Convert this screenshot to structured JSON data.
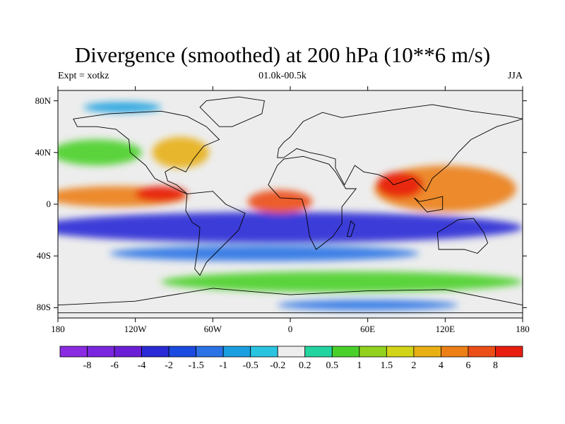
{
  "title": "Divergence (smoothed) at 200 hPa (10**6 m/s)",
  "subtitle": {
    "left": "Expt = xotkz",
    "center": "01.0k-00.5k",
    "right": "JJA"
  },
  "lat_ticks": [
    {
      "lat": 80,
      "label": "80N"
    },
    {
      "lat": 40,
      "label": "40N"
    },
    {
      "lat": 0,
      "label": "0"
    },
    {
      "lat": -40,
      "label": "40S"
    },
    {
      "lat": -80,
      "label": "80S"
    }
  ],
  "lon_ticks": [
    {
      "lon": -180,
      "label": "180"
    },
    {
      "lon": -120,
      "label": "120W"
    },
    {
      "lon": -60,
      "label": "60W"
    },
    {
      "lon": 0,
      "label": "0"
    },
    {
      "lon": 60,
      "label": "60E"
    },
    {
      "lon": 120,
      "label": "120E"
    },
    {
      "lon": 180,
      "label": "180"
    }
  ],
  "colorbar": {
    "colors": [
      "#8a2be2",
      "#7a26de",
      "#6a1fd6",
      "#2a2ad6",
      "#1a4ae0",
      "#2a72e6",
      "#1aa0e0",
      "#2ac4e0",
      "#ededed",
      "#22d4a0",
      "#4ad02a",
      "#92d21e",
      "#d2d418",
      "#e8b014",
      "#ec8016",
      "#ec4e18",
      "#e81e10"
    ],
    "labels": [
      "-8",
      "-6",
      "-4",
      "-2",
      "-1.5",
      "-1",
      "-0.5",
      "-0.2",
      "0.2",
      "0.5",
      "1",
      "1.5",
      "2",
      "4",
      "6",
      "8"
    ]
  },
  "map": {
    "background_color": "#ededed",
    "field_blobs": [
      {
        "name": "tropical-convergence-band",
        "lon": -10,
        "lat": -18,
        "rx": 190,
        "ry": 12,
        "color": "#2a2ad6"
      },
      {
        "name": "pacific-divergence-belt",
        "lon": -135,
        "lat": 6,
        "rx": 55,
        "ry": 8,
        "color": "#ec8016"
      },
      {
        "name": "east-pacific-max",
        "lon": -100,
        "lat": 8,
        "rx": 20,
        "ry": 6,
        "color": "#e81e10"
      },
      {
        "name": "atlantic-max",
        "lon": -8,
        "lat": 2,
        "rx": 25,
        "ry": 9,
        "color": "#ec4e18"
      },
      {
        "name": "asian-monsoon-divergence",
        "lon": 120,
        "lat": 12,
        "rx": 55,
        "ry": 18,
        "color": "#ec8016"
      },
      {
        "name": "indian-ocean-divergence",
        "lon": 85,
        "lat": 15,
        "rx": 18,
        "ry": 10,
        "color": "#e81e10"
      },
      {
        "name": "north-pacific-convergence",
        "lon": -150,
        "lat": 40,
        "rx": 35,
        "ry": 10,
        "color": "#4ad02a"
      },
      {
        "name": "north-america-divergence",
        "lon": -85,
        "lat": 40,
        "rx": 22,
        "ry": 12,
        "color": "#e8b014"
      },
      {
        "name": "southern-ocean-convergence",
        "lon": 40,
        "lat": -60,
        "rx": 140,
        "ry": 8,
        "color": "#4ad02a"
      },
      {
        "name": "antarctic-edge-blue",
        "lon": 60,
        "lat": -78,
        "rx": 70,
        "ry": 4,
        "color": "#2a72e6"
      },
      {
        "name": "subtropical-south-blue",
        "lon": -20,
        "lat": -38,
        "rx": 120,
        "ry": 6,
        "color": "#2a72e6"
      },
      {
        "name": "arctic-blue",
        "lon": -130,
        "lat": 75,
        "rx": 30,
        "ry": 4,
        "color": "#1aa0e0"
      }
    ],
    "continents": [
      {
        "name": "north-america",
        "coords": [
          [
            -168,
            66
          ],
          [
            -140,
            70
          ],
          [
            -100,
            72
          ],
          [
            -80,
            68
          ],
          [
            -65,
            60
          ],
          [
            -55,
            50
          ],
          [
            -67,
            45
          ],
          [
            -75,
            35
          ],
          [
            -81,
            25
          ],
          [
            -90,
            29
          ],
          [
            -97,
            25
          ],
          [
            -95,
            18
          ],
          [
            -88,
            15
          ],
          [
            -80,
            8
          ],
          [
            -85,
            10
          ],
          [
            -105,
            20
          ],
          [
            -112,
            30
          ],
          [
            -124,
            40
          ],
          [
            -125,
            50
          ],
          [
            -135,
            58
          ],
          [
            -150,
            60
          ],
          [
            -165,
            60
          ]
        ]
      },
      {
        "name": "south-america",
        "coords": [
          [
            -80,
            8
          ],
          [
            -60,
            10
          ],
          [
            -50,
            0
          ],
          [
            -35,
            -7
          ],
          [
            -40,
            -20
          ],
          [
            -48,
            -28
          ],
          [
            -58,
            -38
          ],
          [
            -65,
            -45
          ],
          [
            -70,
            -55
          ],
          [
            -74,
            -50
          ],
          [
            -71,
            -30
          ],
          [
            -70,
            -18
          ],
          [
            -76,
            -14
          ],
          [
            -81,
            -5
          ]
        ]
      },
      {
        "name": "africa",
        "coords": [
          [
            -17,
            15
          ],
          [
            -10,
            30
          ],
          [
            -5,
            35
          ],
          [
            10,
            37
          ],
          [
            30,
            31
          ],
          [
            35,
            25
          ],
          [
            43,
            12
          ],
          [
            51,
            12
          ],
          [
            40,
            -2
          ],
          [
            40,
            -15
          ],
          [
            33,
            -25
          ],
          [
            20,
            -35
          ],
          [
            15,
            -25
          ],
          [
            12,
            -6
          ],
          [
            9,
            4
          ],
          [
            -8,
            5
          ]
        ]
      },
      {
        "name": "eurasia",
        "coords": [
          [
            -10,
            36
          ],
          [
            -9,
            43
          ],
          [
            -5,
            48
          ],
          [
            0,
            52
          ],
          [
            5,
            58
          ],
          [
            10,
            64
          ],
          [
            25,
            71
          ],
          [
            40,
            67
          ],
          [
            60,
            70
          ],
          [
            80,
            73
          ],
          [
            110,
            77
          ],
          [
            140,
            72
          ],
          [
            170,
            68
          ],
          [
            180,
            66
          ],
          [
            160,
            60
          ],
          [
            140,
            50
          ],
          [
            130,
            40
          ],
          [
            122,
            30
          ],
          [
            110,
            20
          ],
          [
            105,
            10
          ],
          [
            100,
            15
          ],
          [
            95,
            20
          ],
          [
            80,
            15
          ],
          [
            75,
            20
          ],
          [
            68,
            23
          ],
          [
            57,
            25
          ],
          [
            50,
            30
          ],
          [
            42,
            15
          ],
          [
            35,
            28
          ],
          [
            35,
            35
          ],
          [
            25,
            38
          ],
          [
            15,
            40
          ],
          [
            5,
            43
          ],
          [
            -5,
            36
          ]
        ]
      },
      {
        "name": "australia",
        "coords": [
          [
            114,
            -22
          ],
          [
            130,
            -12
          ],
          [
            142,
            -11
          ],
          [
            150,
            -22
          ],
          [
            153,
            -30
          ],
          [
            145,
            -38
          ],
          [
            135,
            -35
          ],
          [
            115,
            -35
          ]
        ]
      },
      {
        "name": "greenland",
        "coords": [
          [
            -55,
            60
          ],
          [
            -45,
            60
          ],
          [
            -22,
            70
          ],
          [
            -20,
            80
          ],
          [
            -40,
            83
          ],
          [
            -65,
            80
          ],
          [
            -70,
            75
          ]
        ]
      },
      {
        "name": "antarctica",
        "coords": [
          [
            -180,
            -78
          ],
          [
            -120,
            -75
          ],
          [
            -60,
            -65
          ],
          [
            0,
            -70
          ],
          [
            60,
            -67
          ],
          [
            120,
            -66
          ],
          [
            180,
            -78
          ],
          [
            180,
            -84
          ],
          [
            -180,
            -84
          ]
        ]
      },
      {
        "name": "madagascar",
        "coords": [
          [
            44,
            -25
          ],
          [
            47,
            -13
          ],
          [
            50,
            -16
          ],
          [
            47,
            -25
          ]
        ]
      },
      {
        "name": "borneo-sumatra",
        "coords": [
          [
            96,
            5
          ],
          [
            106,
            -6
          ],
          [
            118,
            -4
          ],
          [
            118,
            6
          ],
          [
            110,
            4
          ],
          [
            100,
            2
          ]
        ]
      }
    ]
  }
}
